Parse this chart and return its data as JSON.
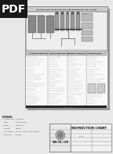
{
  "bg_color": "#e8e8e8",
  "pdf_label": "PDF",
  "pdf_bg": "#1a1a1a",
  "pdf_text_color": "#ffffff",
  "title": "INSTRUCTION CHART FOR CO2 FIRE EXTINGUISHING SYSTEM",
  "doc_bg": "#ffffff",
  "doc_border": "#777777",
  "diag_bg": "#dcdcdc",
  "diag_border": "#888888",
  "lower_bg": "#f2f2f2",
  "col_header_bg": "#c8c8c8",
  "footer_bg": "#e0e0e0",
  "dark": "#111111",
  "mid": "#555555",
  "light_line": "#aaaaaa",
  "instruction_chart_text": "INSTRUCTION CHART",
  "company_text": "WK CO., LTD"
}
